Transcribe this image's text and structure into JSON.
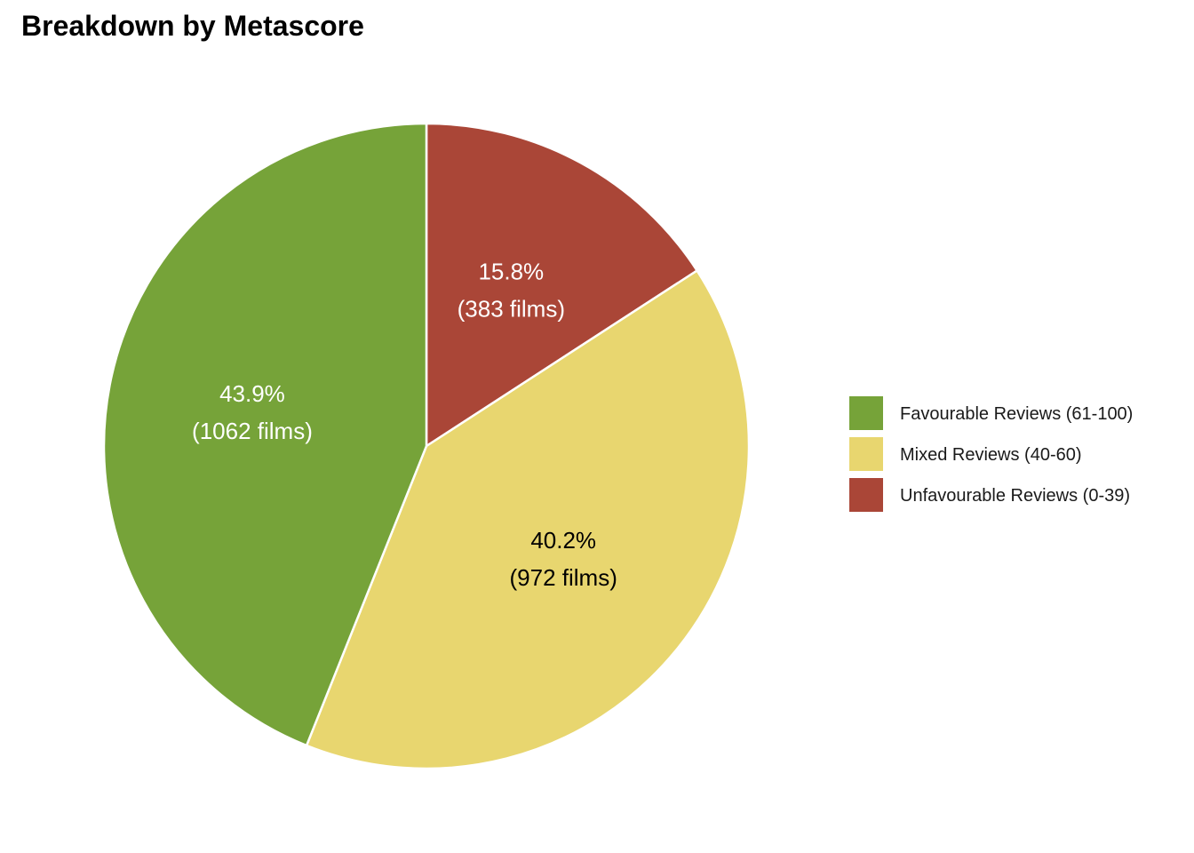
{
  "chart_data": {
    "type": "pie",
    "title": "Breakdown by Metascore",
    "start_angle_deg": 0,
    "direction": "clockwise",
    "legend_position": "right",
    "slices": [
      {
        "name": "Unfavourable Reviews (0-39)",
        "value": 383,
        "percent_label": "15.8%",
        "count_label": "(383 films)",
        "color": "#AA4637",
        "label_color": "#ffffff"
      },
      {
        "name": "Mixed Reviews (40-60)",
        "value": 972,
        "percent_label": "40.2%",
        "count_label": "(972 films)",
        "color": "#E8D66F",
        "label_color": "#000000"
      },
      {
        "name": "Favourable Reviews (61-100)",
        "value": 1062,
        "percent_label": "43.9%",
        "count_label": "(1062 films)",
        "color": "#76A339",
        "label_color": "#ffffff"
      }
    ],
    "legend_order": [
      "Favourable Reviews (61-100)",
      "Mixed Reviews (40-60)",
      "Unfavourable Reviews (0-39)"
    ]
  }
}
